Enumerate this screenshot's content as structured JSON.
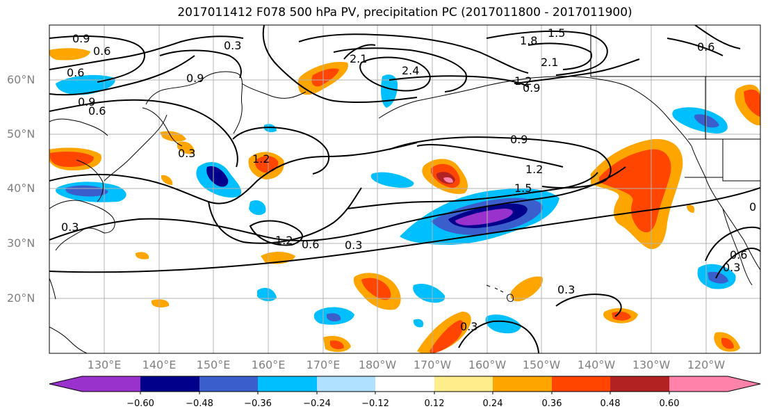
{
  "title": "2017011412 F078 500 hPa PV, precipitation PC (2017011800 - 2017011900)",
  "map": {
    "lat_labels": [
      "60°N",
      "50°N",
      "40°N",
      "30°N",
      "20°N"
    ],
    "lon_labels": [
      "130°E",
      "140°E",
      "150°E",
      "160°E",
      "170°E",
      "180°W",
      "170°W",
      "160°W",
      "150°W",
      "140°W",
      "130°W",
      "120°W"
    ],
    "contour_labels": [
      "0.9",
      "0.6",
      "0.3",
      "0.6",
      "0.9",
      "0.9",
      "0.6",
      "0.3",
      "1.2",
      "2.1",
      "2.4",
      "1.8",
      "1.5",
      "2.1",
      "1.2",
      "0.9",
      "0.6",
      "0.9",
      "1.2",
      "1.5",
      "0.3",
      "1.2",
      "0.6",
      "0.3",
      "0.3",
      "0.3",
      "0.3",
      "0.6",
      "0"
    ],
    "contour_color": "#000000",
    "grid_color": "#b3b3b3",
    "coastline_color": "#000000"
  },
  "colorbar": {
    "ticks": [
      "−0.60",
      "−0.48",
      "−0.36",
      "−0.24",
      "−0.12",
      "0.12",
      "0.24",
      "0.36",
      "0.48",
      "0.60"
    ],
    "colors": [
      "#9932cc",
      "#00008b",
      "#3a5fcd",
      "#00bfff",
      "#b0e2ff",
      "#ffffff",
      "#ffec8b",
      "#ffa500",
      "#ff4500",
      "#b22222",
      "#ff82ab"
    ]
  }
}
